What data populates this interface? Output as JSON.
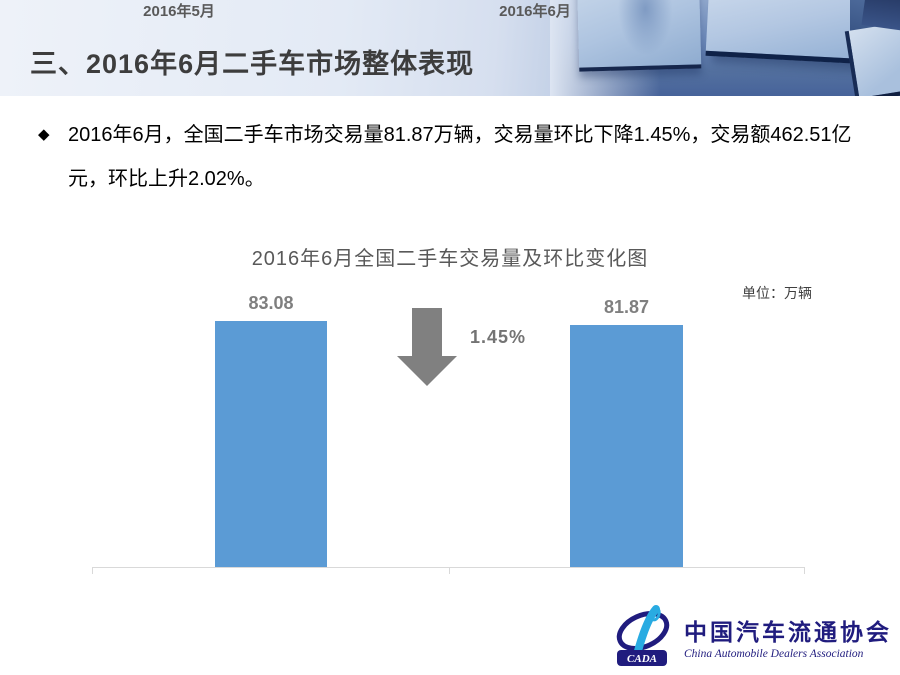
{
  "header": {
    "title": "三、2016年6月二手车市场整体表现"
  },
  "bullet": {
    "marker": "◆",
    "text": "2016年6月，全国二手车市场交易量81.87万辆，交易量环比下降1.45%，交易额462.51亿元，环比上升2.02%。"
  },
  "chart_data": {
    "type": "bar",
    "title": "2016年6月全国二手车交易量及环比变化图",
    "unit_label": "单位：万辆",
    "categories": [
      "2016年5月",
      "2016年6月"
    ],
    "values": [
      83.08,
      81.87
    ],
    "value_labels": [
      "83.08",
      "81.87"
    ],
    "series_name": "二手车交易量",
    "change_label": "1.45%",
    "change_direction": "down",
    "ylim": [
      0,
      83.08
    ],
    "grid": false,
    "legend": false,
    "xlabel": "",
    "ylabel": "万辆"
  },
  "colors": {
    "bar": "#5b9bd5",
    "arrow": "#808080",
    "axis": "#d9d9d9",
    "chart_text": "#595959",
    "value_text": "#7f7f7f",
    "logo_navy": "#201c7e",
    "logo_cyan": "#29abe2"
  },
  "footer": {
    "logo_abbr": "CADA",
    "logo_text_cn": "中国汽车流通协会",
    "logo_text_en": "China Automobile Dealers Association"
  }
}
